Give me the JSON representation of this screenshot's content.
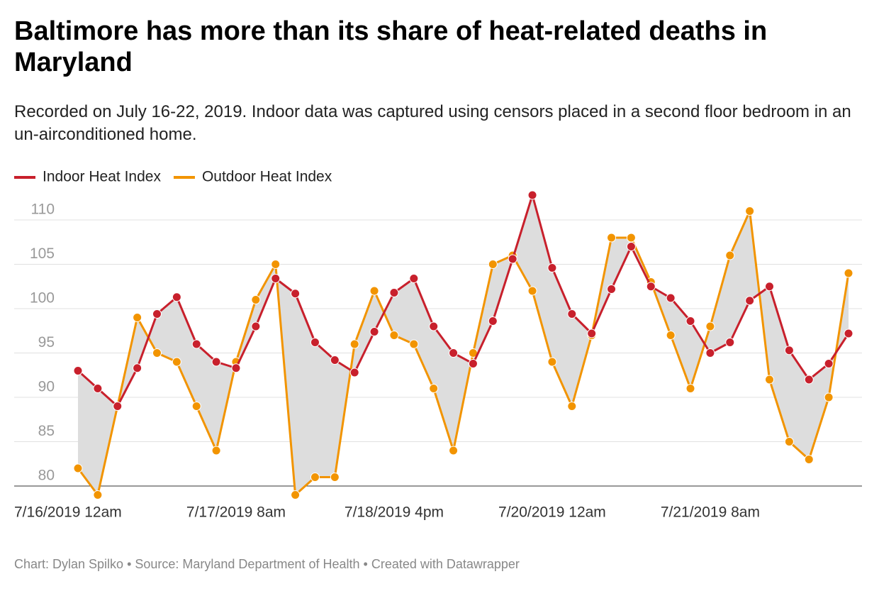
{
  "chart_data": {
    "type": "line",
    "title": "Baltimore has more than its share of heat-related deaths in Maryland",
    "subtitle": "Recorded on July 16-22, 2019. Indoor data was captured using censors placed in a second floor bedroom in an un-airconditioned home.",
    "footer": "Chart: Dylan Spilko • Source: Maryland Department of Health • Created with Datawrapper",
    "categories": [
      "7/16/2019 12am",
      null,
      null,
      null,
      null,
      null,
      null,
      null,
      "7/17/2019 8am",
      null,
      null,
      null,
      null,
      null,
      null,
      null,
      "7/18/2019 4pm",
      null,
      null,
      null,
      null,
      null,
      null,
      null,
      "7/20/2019 12am",
      null,
      null,
      null,
      null,
      null,
      null,
      null,
      "7/21/2019 8am",
      null,
      null,
      null,
      null,
      null,
      null,
      null
    ],
    "series": [
      {
        "name": "Indoor Heat Index",
        "color": "#c8202c",
        "values": [
          93,
          91,
          89,
          93.3,
          99.4,
          101.3,
          96,
          94,
          93.3,
          98,
          103.4,
          101.7,
          96.2,
          94.2,
          92.8,
          97.4,
          101.8,
          103.4,
          98,
          95,
          93.8,
          98.6,
          105.6,
          112.8,
          104.6,
          99.4,
          97.2,
          102.2,
          107,
          102.5,
          101.2,
          98.6,
          95,
          96.2,
          100.9,
          102.5,
          95.3,
          92,
          93.8,
          97.2
        ]
      },
      {
        "name": "Outdoor Heat Index",
        "color": "#f29400",
        "values": [
          82,
          79,
          89,
          99,
          95,
          94,
          89,
          84,
          94,
          101,
          105,
          79,
          81,
          81,
          96,
          102,
          97,
          96,
          91,
          84,
          95,
          105,
          106,
          102,
          94,
          89,
          97,
          108,
          108,
          103,
          97,
          91,
          98,
          106,
          111,
          92,
          85,
          83,
          90,
          104
        ]
      }
    ],
    "ylim": [
      78,
      113
    ],
    "yticks": [
      80,
      85,
      90,
      95,
      100,
      105,
      110
    ],
    "grid": true,
    "area_color": "#dddddd"
  }
}
